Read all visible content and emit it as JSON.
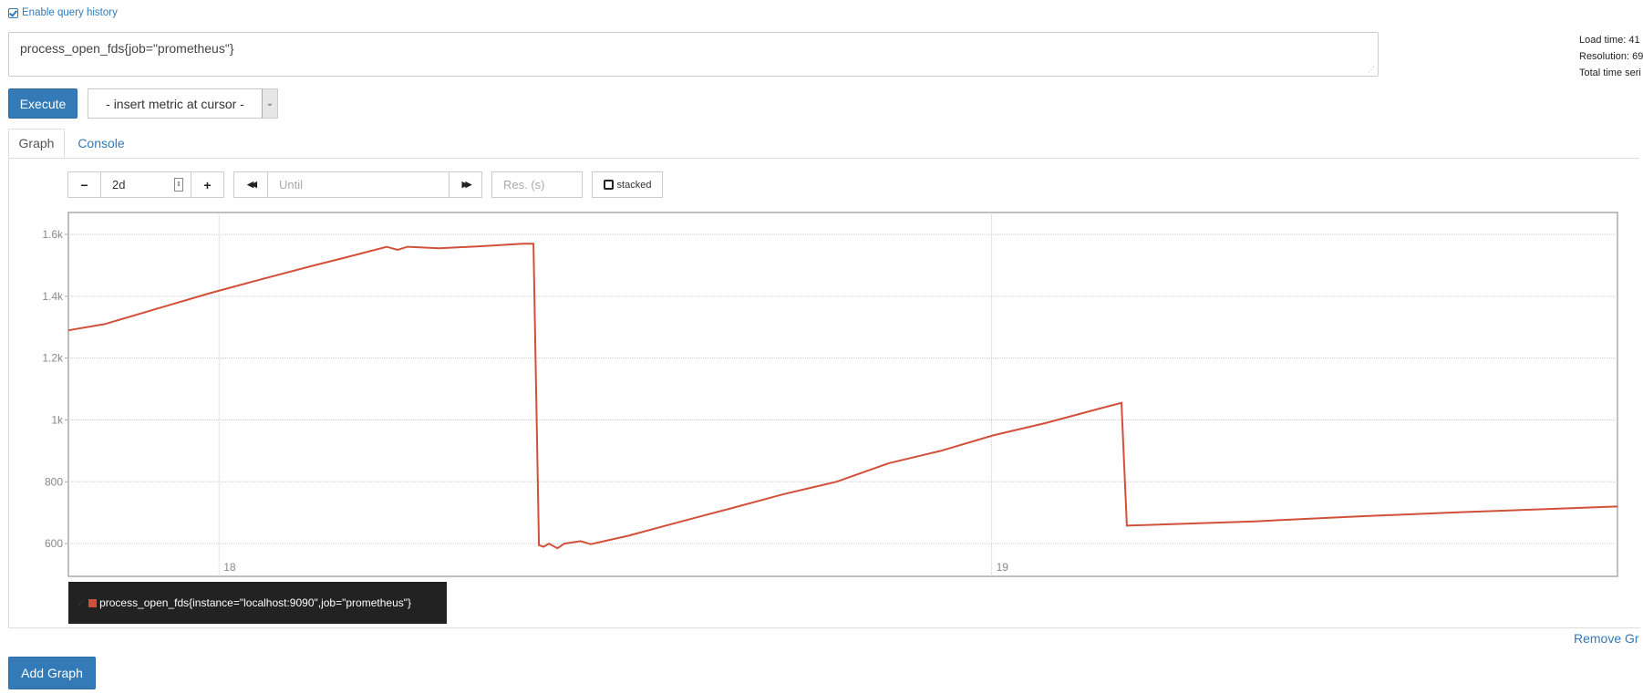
{
  "header": {
    "query_history_label": "Enable query history"
  },
  "expression": {
    "value": "process_open_fds{job=\"prometheus\"}"
  },
  "toolbar": {
    "execute_label": "Execute",
    "insert_metric_placeholder": "- insert metric at cursor -"
  },
  "info": {
    "load_time": "Load time: 41",
    "resolution": "Resolution: 69",
    "total_series": "Total time seri"
  },
  "tabs": [
    {
      "label": "Graph",
      "active": true
    },
    {
      "label": "Console",
      "active": false
    }
  ],
  "graph_controls": {
    "minus": "−",
    "range": "2d",
    "plus": "+",
    "back": "◀◀",
    "until_placeholder": "Until",
    "forward": "▶▶",
    "res_placeholder": "Res. (s)",
    "stacked_label": "stacked"
  },
  "legend": {
    "series": "process_open_fds{instance=\"localhost:9090\",job=\"prometheus\"}",
    "color": "#d1503a"
  },
  "footer": {
    "remove_graph": "Remove Gr",
    "add_graph": "Add Graph"
  },
  "chart_data": {
    "type": "line",
    "xlim": [
      17.805,
      19.81
    ],
    "ylim": [
      494,
      1671
    ],
    "x_ticks": [
      18,
      19
    ],
    "x_tick_labels": [
      "18",
      "19"
    ],
    "y_ticks": [
      600,
      800,
      1000,
      1200,
      1400,
      1600
    ],
    "y_tick_labels": [
      "600",
      "800",
      "1k",
      "1.2k",
      "1.4k",
      "1.6k"
    ],
    "grid": true,
    "series": [
      {
        "name": "process_open_fds{instance=\"localhost:9090\",job=\"prometheus\"}",
        "color": "#d1503a",
        "x": [
          17.805,
          17.852,
          17.92,
          17.988,
          18.055,
          18.123,
          18.163,
          18.217,
          18.231,
          18.244,
          18.285,
          18.339,
          18.393,
          18.407,
          18.414,
          18.42,
          18.427,
          18.438,
          18.447,
          18.468,
          18.481,
          18.529,
          18.596,
          18.664,
          18.731,
          18.799,
          18.867,
          18.934,
          19.002,
          19.07,
          19.137,
          19.168,
          19.175,
          19.34,
          19.475,
          19.611,
          19.81
        ],
        "y": [
          1290,
          1310,
          1360,
          1410,
          1455,
          1500,
          1525,
          1560,
          1550,
          1560,
          1555,
          1562,
          1570,
          1570,
          595,
          590,
          600,
          585,
          600,
          608,
          598,
          625,
          670,
          715,
          760,
          800,
          860,
          900,
          950,
          990,
          1035,
          1055,
          658,
          672,
          688,
          702,
          720
        ]
      }
    ]
  }
}
